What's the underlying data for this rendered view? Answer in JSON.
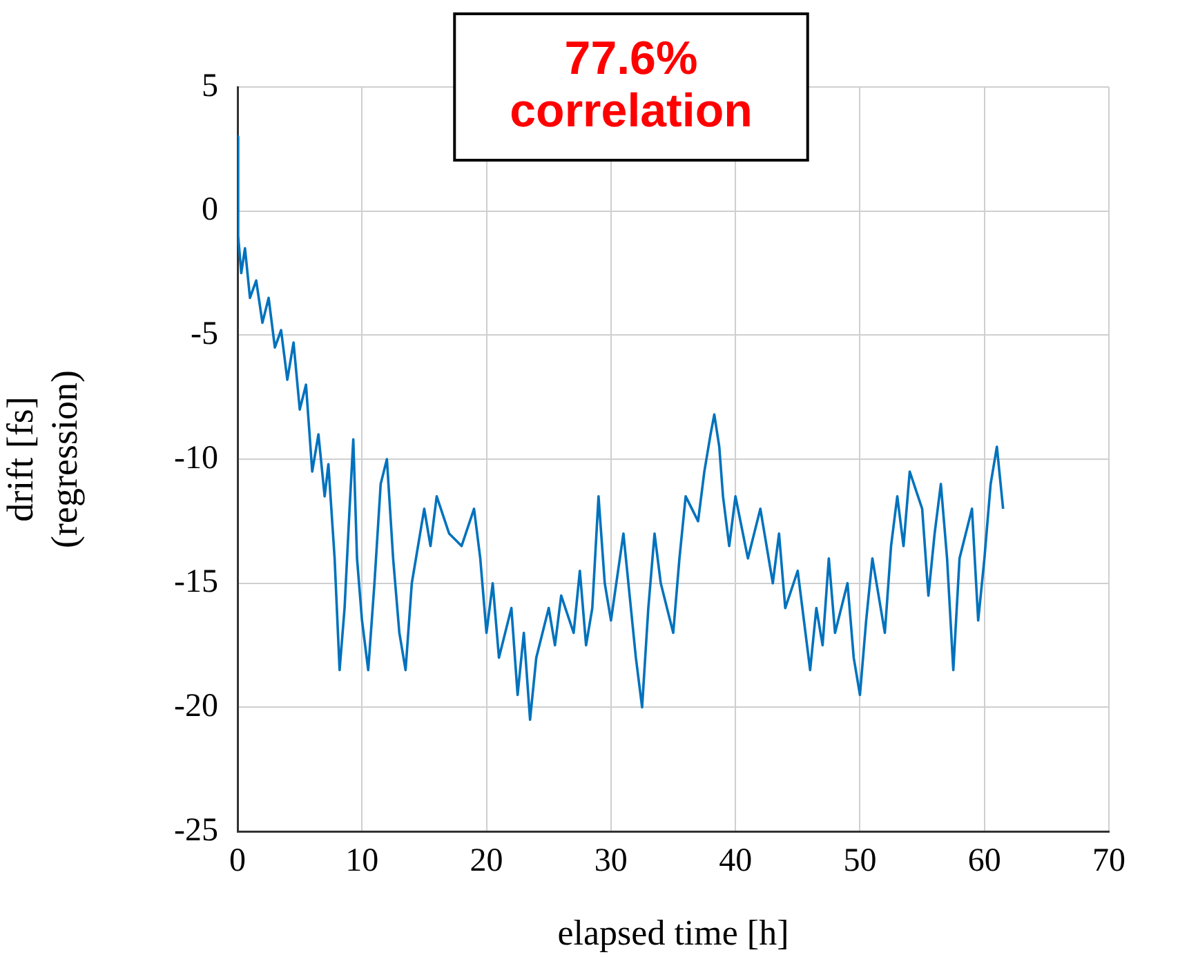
{
  "chart_data": {
    "type": "line",
    "xlabel": "elapsed time [h]",
    "ylabel": "drift [fs]\n(regression)",
    "annotations": [
      "77.6%\ncorrelation"
    ],
    "xlim": [
      0,
      70
    ],
    "xticks": [
      0,
      10,
      20,
      30,
      40,
      50,
      60,
      70
    ],
    "ylim": [
      -25,
      5
    ],
    "yticks": [
      -25,
      -20,
      -15,
      -10,
      -5,
      0,
      5
    ],
    "grid": true,
    "legend": false,
    "marker": "none",
    "line_style": "solid",
    "series": [
      {
        "color": "#0072bd",
        "x": [
          0,
          0.05,
          0.3,
          0.6,
          1,
          1.5,
          2,
          2.5,
          3,
          3.5,
          4,
          4.5,
          5,
          5.5,
          6,
          6.5,
          7,
          7.3,
          7.8,
          8.2,
          8.6,
          9,
          9.3,
          9.6,
          10,
          10.5,
          11,
          11.5,
          12,
          12.5,
          13,
          13.5,
          14,
          15,
          15.5,
          16,
          17,
          18,
          19,
          19.5,
          20,
          20.5,
          21,
          22,
          22.5,
          23,
          23.5,
          24,
          25,
          25.5,
          26,
          27,
          27.5,
          28,
          28.5,
          29,
          29.5,
          30,
          31,
          31.5,
          32,
          32.5,
          33,
          33.5,
          34,
          35,
          35.5,
          36,
          37,
          37.5,
          38,
          38.3,
          38.7,
          39,
          39.5,
          40,
          41,
          42,
          43,
          43.5,
          44,
          45,
          46,
          46.5,
          47,
          47.5,
          48,
          49,
          49.5,
          50,
          50.5,
          51,
          52,
          52.5,
          53,
          53.5,
          54,
          55,
          55.5,
          56,
          56.5,
          57,
          57.5,
          58,
          59,
          59.5,
          60,
          60.5,
          61,
          61.5
        ],
        "values": [
          3,
          -1,
          -2.5,
          -1.5,
          -3.5,
          -2.8,
          -4.5,
          -3.5,
          -5.5,
          -4.8,
          -6.8,
          -5.3,
          -8,
          -7,
          -10.5,
          -9,
          -11.5,
          -10.2,
          -14,
          -18.5,
          -16,
          -12,
          -9.2,
          -14,
          -16.5,
          -18.5,
          -15,
          -11,
          -10,
          -14,
          -17,
          -18.5,
          -15,
          -12,
          -13.5,
          -11.5,
          -13,
          -13.5,
          -12,
          -14,
          -17,
          -15,
          -18,
          -16,
          -19.5,
          -17,
          -20.5,
          -18,
          -16,
          -17.5,
          -15.5,
          -17,
          -14.5,
          -17.5,
          -16,
          -11.5,
          -15,
          -16.5,
          -13,
          -15.5,
          -18,
          -20,
          -16,
          -13,
          -15,
          -17,
          -14,
          -11.5,
          -12.5,
          -10.5,
          -9,
          -8.2,
          -9.5,
          -11.5,
          -13.5,
          -11.5,
          -14,
          -12,
          -15,
          -13,
          -16,
          -14.5,
          -18.5,
          -16,
          -17.5,
          -14,
          -17,
          -15,
          -18,
          -19.5,
          -16.5,
          -14,
          -17,
          -13.5,
          -11.5,
          -13.5,
          -10.5,
          -12,
          -15.5,
          -13,
          -11,
          -14,
          -18.5,
          -14,
          -12,
          -16.5,
          -14,
          -11,
          -9.5,
          -12
        ]
      }
    ]
  }
}
